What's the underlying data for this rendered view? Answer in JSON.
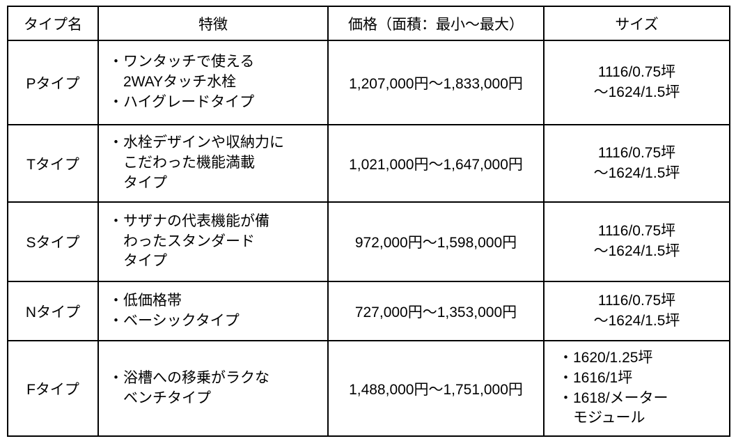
{
  "table": {
    "border_color": "#000000",
    "text_color": "#000000",
    "background_color": "#ffffff",
    "headers": {
      "type_name": "タイプ名",
      "features": "特徴",
      "price": "価格（面積：最小～最大）",
      "size": "サイズ"
    },
    "rows": [
      {
        "type_name": "Pタイプ",
        "features": [
          "・ワンタッチで使える\n2WAYタッチ水栓",
          "・ハイグレードタイプ"
        ],
        "price": "1,207,000円～1,833,000円",
        "sizes": [
          "1116/0.75坪\n～1624/1.5坪"
        ]
      },
      {
        "type_name": "Tタイプ",
        "features": [
          "・水栓デザインや収納力に\nこだわった機能満載\nタイプ"
        ],
        "price": "1,021,000円～1,647,000円",
        "sizes": [
          "1116/0.75坪\n～1624/1.5坪"
        ]
      },
      {
        "type_name": "Sタイプ",
        "features": [
          "・サザナの代表機能が備\nわったスタンダード\nタイプ"
        ],
        "price": "972,000円～1,598,000円",
        "sizes": [
          "1116/0.75坪\n～1624/1.5坪"
        ]
      },
      {
        "type_name": "Nタイプ",
        "features": [
          "・低価格帯",
          "・ベーシックタイプ"
        ],
        "price": "727,000円～1,353,000円",
        "sizes": [
          "1116/0.75坪\n～1624/1.5坪"
        ]
      },
      {
        "type_name": "Fタイプ",
        "features": [
          "・浴槽への移乗がラクな\nベンチタイプ"
        ],
        "price": "1,488,000円～1,751,000円",
        "sizes": [
          "・1620/1.25坪",
          "・1616/1坪",
          "・1618/メーター\nモジュール"
        ]
      }
    ]
  }
}
